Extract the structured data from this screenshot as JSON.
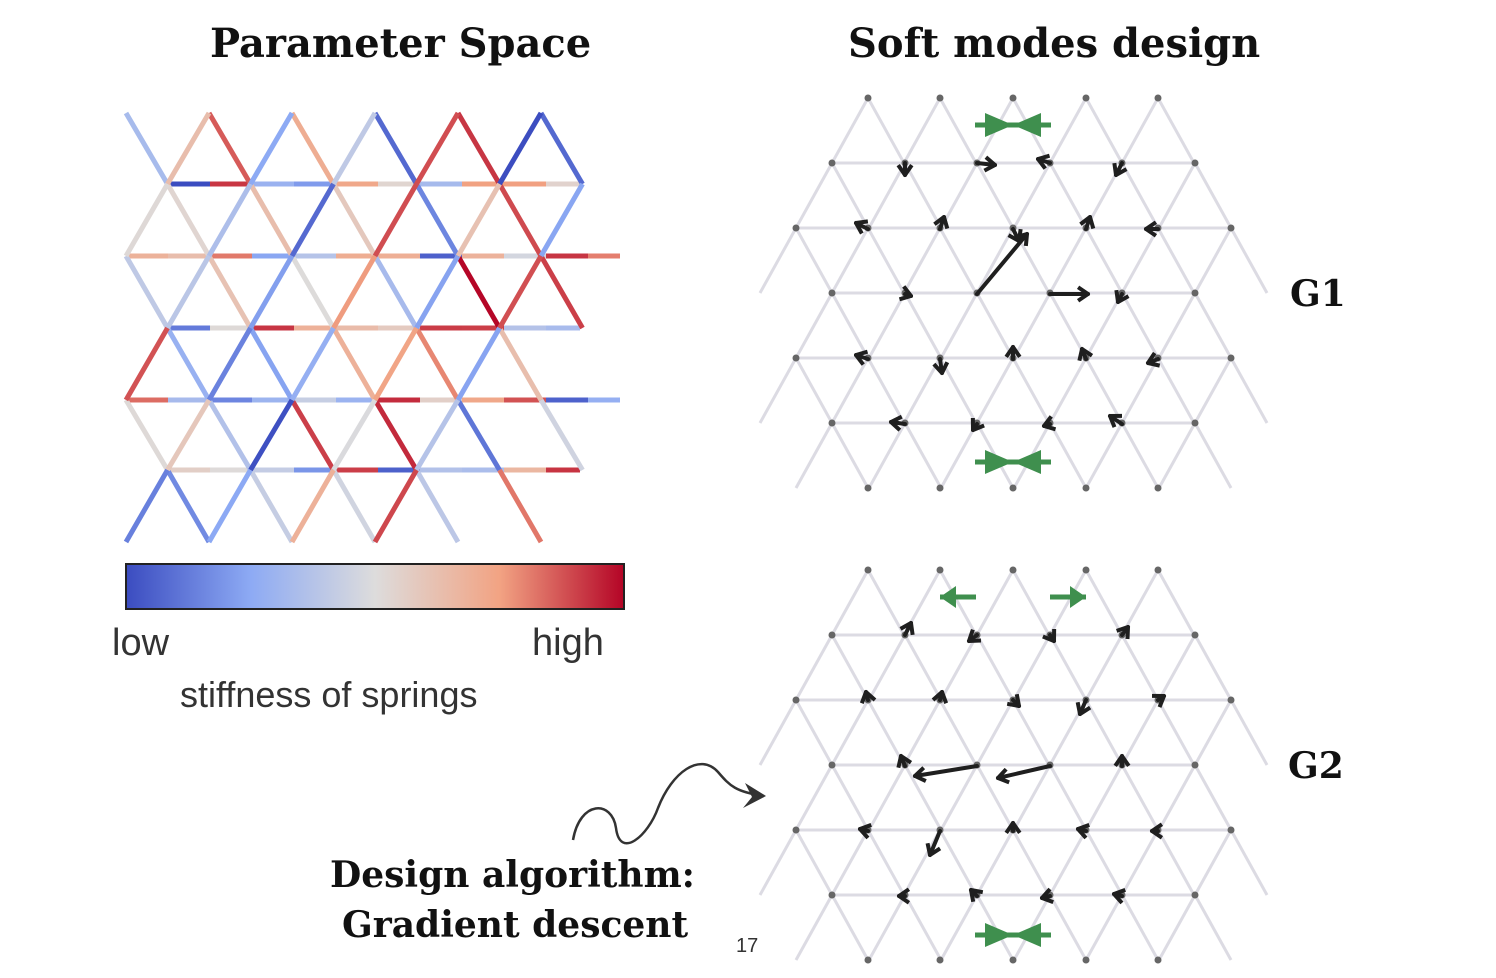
{
  "left_panel": {
    "title": "Parameter Space",
    "colorbar": {
      "low_label": "low",
      "high_label": "high",
      "caption": "stiffness of springs",
      "colors": [
        "#3b4cc0",
        "#dddcdc",
        "#b40426"
      ]
    }
  },
  "right_panel": {
    "title": "Soft modes design",
    "g1_label": "G1",
    "g2_label": "G2"
  },
  "design_note": {
    "line1": "Design algorithm:",
    "line2": "Gradient descent"
  },
  "page_number": "17",
  "colors": {
    "network_bond": "#dcdbe3",
    "node": "#666666",
    "arrow": "#1f1f1f",
    "boundary_arrow": "#3f8f4e"
  }
}
